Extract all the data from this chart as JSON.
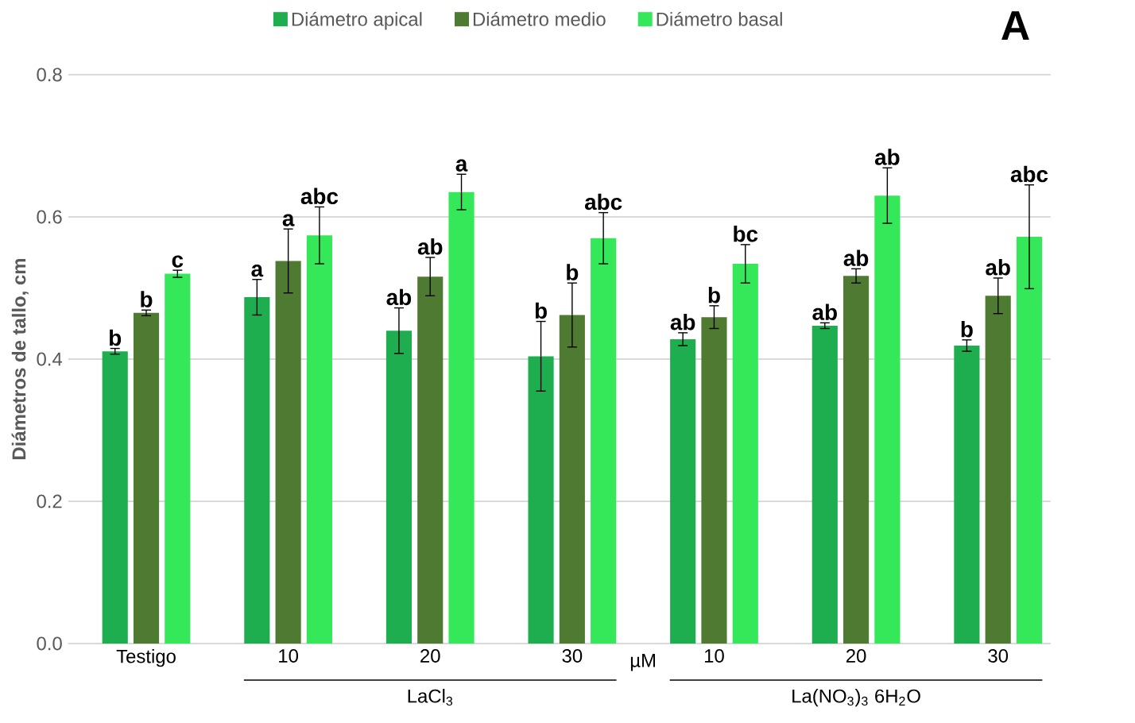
{
  "chart_data": {
    "type": "bar",
    "title": "A",
    "ylabel": "Diámetros de tallo, cm",
    "categories": [
      "Testigo",
      "10",
      "20",
      "30",
      "10",
      "20",
      "30"
    ],
    "series": [
      {
        "name": "Diámetro apical",
        "color": "#1fae4f",
        "values": [
          0.411,
          0.487,
          0.44,
          0.404,
          0.428,
          0.447,
          0.419
        ],
        "errors": [
          0.004,
          0.025,
          0.032,
          0.049,
          0.009,
          0.004,
          0.008
        ],
        "value_labels": [
          "b",
          "a",
          "ab",
          "b",
          "ab",
          "ab",
          "b"
        ]
      },
      {
        "name": "Diámetro medio",
        "color": "#4f7a32",
        "values": [
          0.465,
          0.538,
          0.516,
          0.462,
          0.459,
          0.517,
          0.489
        ],
        "errors": [
          0.004,
          0.045,
          0.027,
          0.045,
          0.016,
          0.01,
          0.025
        ],
        "value_labels": [
          "b",
          "a",
          "ab",
          "b",
          "b",
          "ab",
          "ab"
        ]
      },
      {
        "name": "Diámetro basal",
        "color": "#35e85a",
        "values": [
          0.52,
          0.574,
          0.635,
          0.57,
          0.534,
          0.63,
          0.572
        ],
        "errors": [
          0.005,
          0.04,
          0.025,
          0.036,
          0.027,
          0.039,
          0.073
        ],
        "value_labels": [
          "c",
          "abc",
          "a",
          "abc",
          "bc",
          "ab",
          "abc"
        ]
      }
    ],
    "ylim": [
      0,
      0.8
    ],
    "yticks": [
      {
        "value": 0,
        "label": "0.0"
      },
      {
        "value": 0.2,
        "label": "0.2"
      },
      {
        "value": 0.4,
        "label": "0.4"
      },
      {
        "value": 0.6,
        "label": "0.6"
      },
      {
        "value": 0.8,
        "label": "0.8"
      }
    ],
    "grid": "y",
    "legend": "top",
    "annotations": [
      "µM",
      "LaCl$_{3}$",
      "La(NO$_{3}$)$_{3}$ 6H$_{2}$O"
    ]
  }
}
